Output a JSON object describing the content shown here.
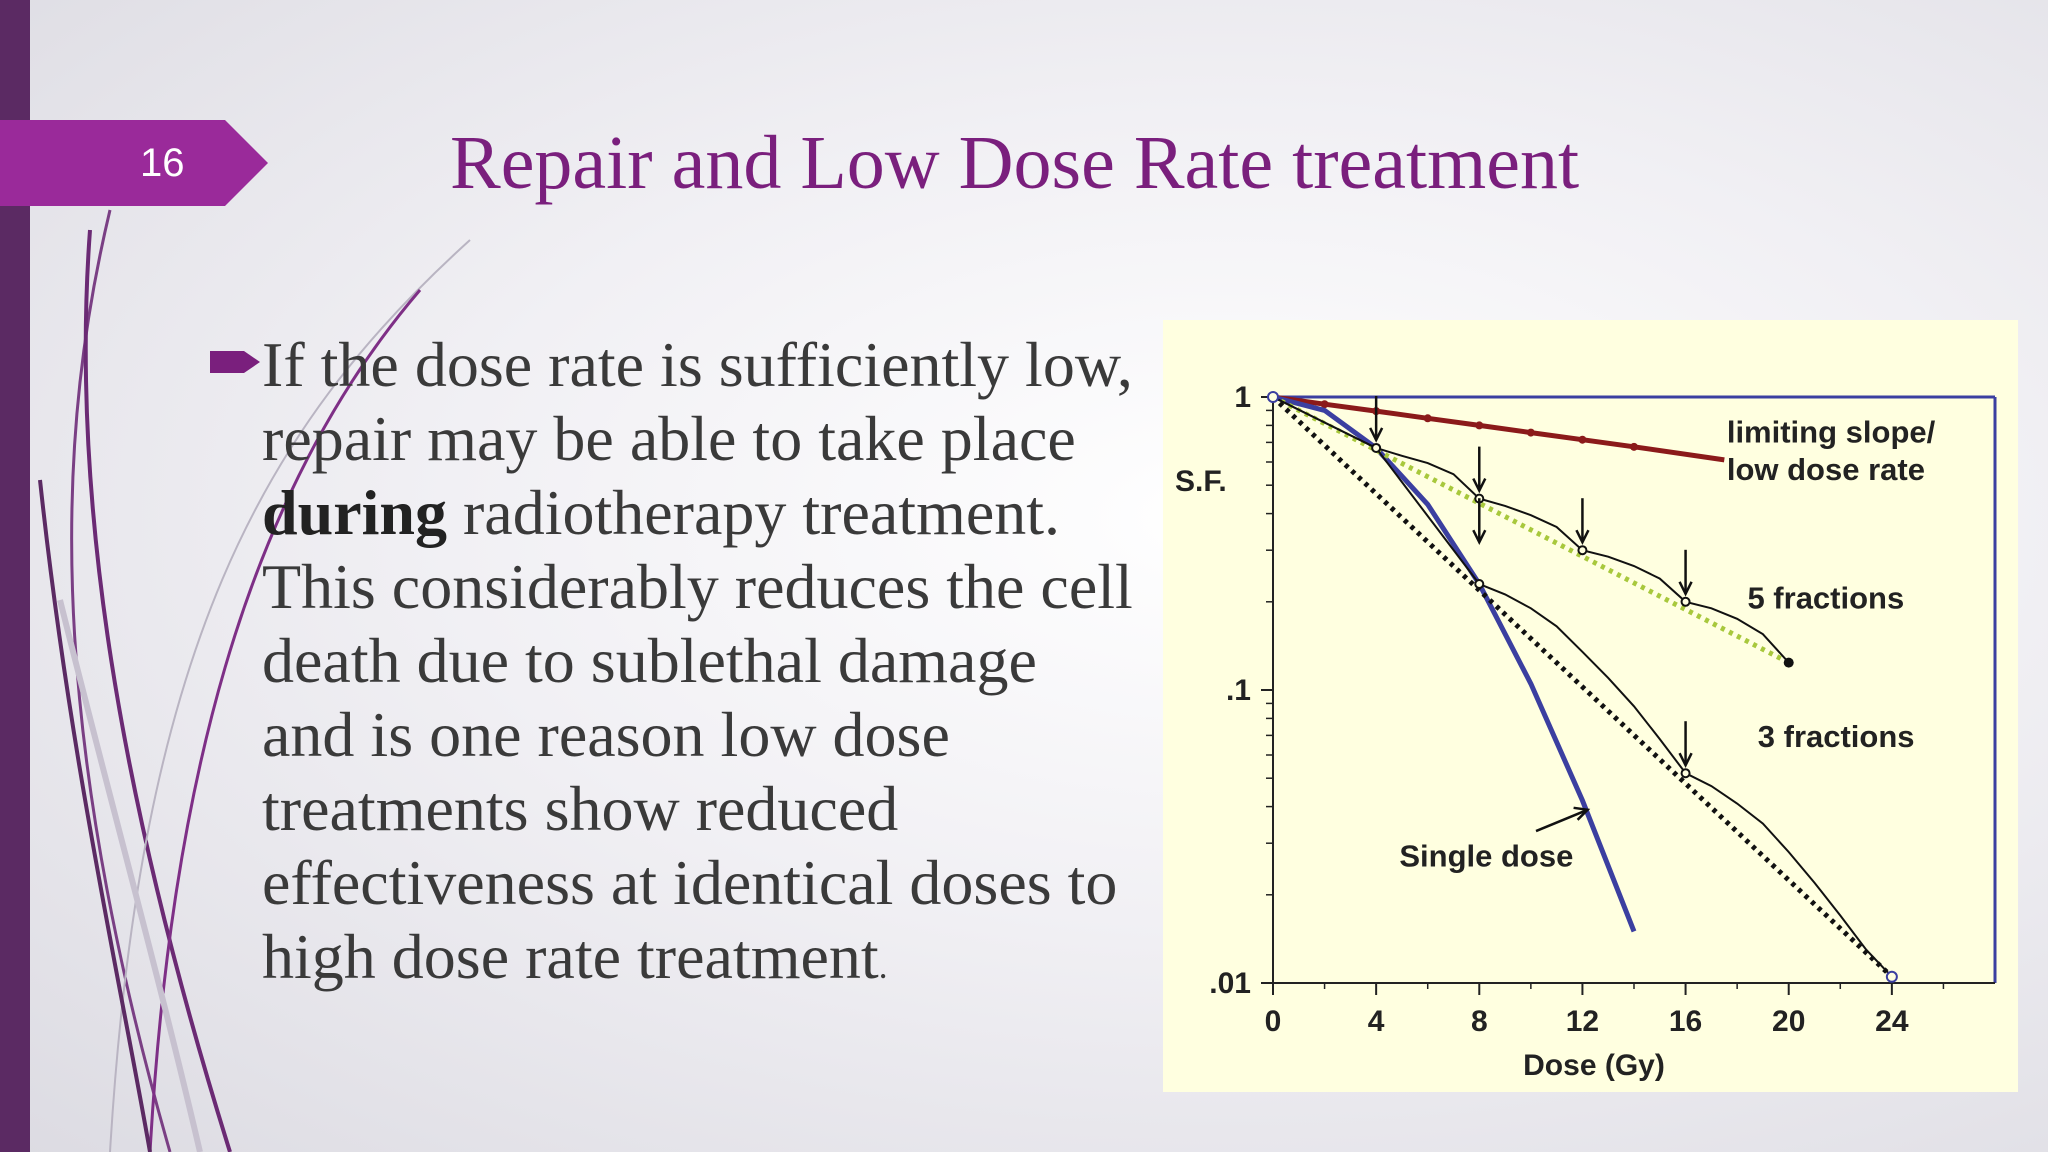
{
  "slide": {
    "number": "16",
    "title": "Repair and Low Dose Rate treatment"
  },
  "bullet": {
    "text_pre": "If the dose rate is sufficiently low, repair may be able to take place ",
    "text_bold": "during",
    "text_post": " radiotherapy treatment. This considerably reduces the cell death due to sublethal damage and is one reason low dose treatments show reduced effectiveness at identical doses to high dose rate treatment",
    "text_end": "."
  },
  "colors": {
    "accent": "#7a1f7d",
    "tab": "#9a2a9a",
    "sidebar": "#5b2a63",
    "chart_bg": "#ffffe0",
    "limiting": "#8b1a1a",
    "single": "#3b3fa0",
    "five_dotted": "#a8c83c"
  },
  "chart_data": {
    "type": "line",
    "xlabel": "Dose (Gy)",
    "ylabel": "S.F.",
    "xlim": [
      0,
      28
    ],
    "ylim": [
      0.01,
      1
    ],
    "yscale": "log",
    "x_ticks": [
      "0",
      "4",
      "8",
      "12",
      "16",
      "20",
      "24"
    ],
    "x_tick_values": [
      0,
      4,
      8,
      12,
      16,
      20,
      24
    ],
    "y_ticks": [
      "1",
      ".1",
      ".01"
    ],
    "y_tick_values": [
      1,
      0.1,
      0.01
    ],
    "grid": false,
    "series": [
      {
        "name": "limiting slope/ low dose rate",
        "style": "solid-thick",
        "color": "#8b1a1a",
        "x": [
          0,
          2,
          4,
          6,
          8,
          10,
          12,
          14,
          17.5
        ],
        "y": [
          1,
          0.945,
          0.895,
          0.846,
          0.8,
          0.756,
          0.715,
          0.676,
          0.61
        ]
      },
      {
        "name": "Single dose",
        "style": "solid-thick",
        "color": "#3b3fa0",
        "x": [
          0,
          2,
          4,
          6,
          8,
          10,
          12,
          14
        ],
        "y": [
          1,
          0.9,
          0.67,
          0.43,
          0.23,
          0.105,
          0.042,
          0.015
        ]
      },
      {
        "name": "5 fractions",
        "style": "dotted",
        "color": "#a8c83c",
        "x": [
          0,
          20
        ],
        "y": [
          1,
          0.124
        ]
      },
      {
        "name": "3 fractions",
        "style": "dotted",
        "color": "#111111",
        "x": [
          0,
          24
        ],
        "y": [
          1,
          0.0105
        ]
      },
      {
        "name": "",
        "style": "thin",
        "color": "#111111",
        "x": [
          0,
          4,
          5,
          6,
          7,
          8,
          9,
          10,
          11,
          12,
          13,
          14,
          15,
          16,
          17,
          18,
          19,
          20
        ],
        "y": [
          1,
          0.67,
          0.63,
          0.595,
          0.545,
          0.45,
          0.425,
          0.395,
          0.36,
          0.3,
          0.285,
          0.265,
          0.24,
          0.2,
          0.19,
          0.175,
          0.155,
          0.124
        ]
      },
      {
        "name": "",
        "style": "thin",
        "color": "#111111",
        "x": [
          0,
          4,
          8,
          9,
          10,
          11,
          12,
          13,
          14,
          15,
          16,
          17,
          18,
          19,
          20,
          21,
          22,
          23,
          24
        ],
        "y": [
          1,
          0.67,
          0.23,
          0.212,
          0.19,
          0.165,
          0.135,
          0.11,
          0.088,
          0.068,
          0.052,
          0.047,
          0.041,
          0.035,
          0.028,
          0.022,
          0.017,
          0.013,
          0.0105
        ]
      }
    ],
    "arrows_x": [
      4,
      8,
      8,
      12,
      16,
      16
    ],
    "arrows_y": [
      0.67,
      0.45,
      0.3,
      0.3,
      0.2,
      0.052
    ],
    "annotations": [
      {
        "text": "limiting slope/",
        "x": 17.6,
        "y": 0.7
      },
      {
        "text": "low dose rate",
        "x": 17.6,
        "y": 0.52
      },
      {
        "text": "5 fractions",
        "x": 18.4,
        "y": 0.19
      },
      {
        "text": "3 fractions",
        "x": 18.8,
        "y": 0.064
      },
      {
        "text": "Single dose",
        "x": 4.9,
        "y": 0.025
      }
    ]
  }
}
